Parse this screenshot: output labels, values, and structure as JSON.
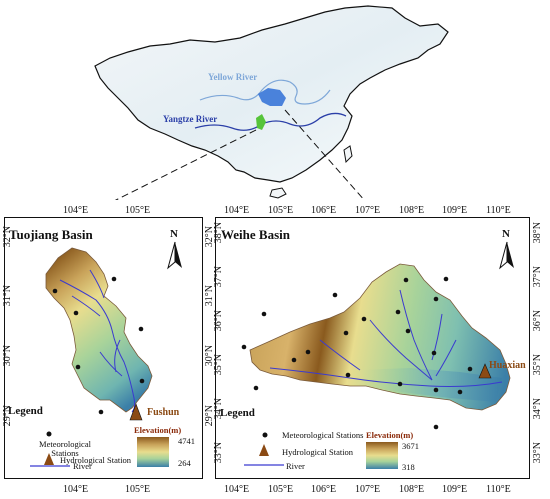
{
  "overview": {
    "yellow_river_label": "Yellow River",
    "yangtze_river_label": "Yangtze River"
  },
  "left_panel": {
    "title": "Tuojiang Basin",
    "x_ticks_top": [
      "104°E",
      "105°E"
    ],
    "x_ticks_bottom": [
      "104°E",
      "105°E"
    ],
    "y_ticks_left": [
      "32°N",
      "31°N",
      "30°N",
      "29°N"
    ],
    "y_ticks_right": [
      "32°N",
      "31°N",
      "30°N",
      "29°N"
    ],
    "north_label": "N",
    "station_label": "Fushun",
    "legend": {
      "title": "Legend",
      "met_label": "Meteorological Stations",
      "hydro_label": "Hydrological Station",
      "river_label": "River",
      "elev_title": "Elevation(m)",
      "elev_max": "4741",
      "elev_min": "264"
    }
  },
  "right_panel": {
    "title": "Weihe Basin",
    "x_ticks_top": [
      "104°E",
      "105°E",
      "106°E",
      "107°E",
      "108°E",
      "109°E",
      "110°E"
    ],
    "x_ticks_bottom": [
      "104°E",
      "105°E",
      "106°E",
      "107°E",
      "108°E",
      "109°E",
      "110°E"
    ],
    "y_ticks_left": [
      "38°N",
      "37°N",
      "36°N",
      "35°N",
      "34°N",
      "33°N"
    ],
    "y_ticks_right": [
      "38°N",
      "37°N",
      "36°N",
      "35°N",
      "34°N",
      "33°N"
    ],
    "north_label": "N",
    "station_label": "Huaxian",
    "legend": {
      "title": "Legend",
      "met_label": "Meteorological Stations",
      "hydro_label": "Hydrological Station",
      "river_label": "River",
      "elev_title": "Elevation(m)",
      "elev_max": "3671",
      "elev_min": "318"
    }
  },
  "colors": {
    "elev_high": "#8a5a1e",
    "elev_mid_high": "#c9a35a",
    "elev_mid": "#e8dd8e",
    "elev_low_mid": "#a8d39a",
    "elev_low": "#3b7fa8",
    "river": "#3a3ad0",
    "hydro_station": "#8b4a14",
    "weihe_highlight": "#2f6fd6",
    "tuojiang_highlight": "#55c43a"
  }
}
